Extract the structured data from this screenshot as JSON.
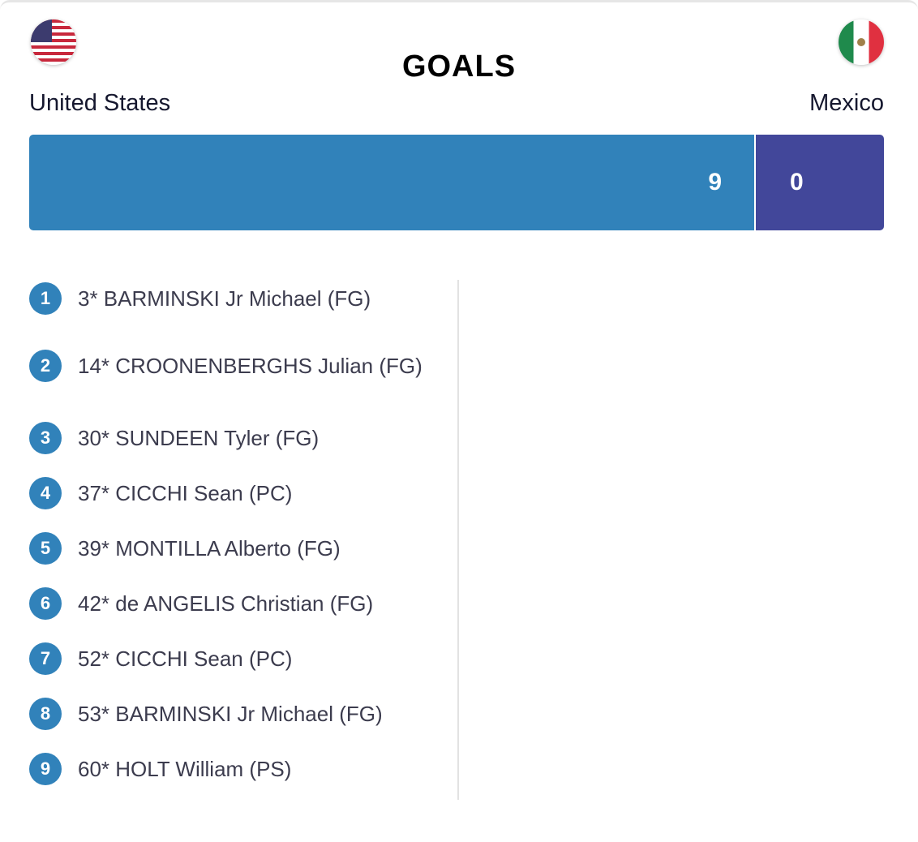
{
  "title": "GOALS",
  "home": {
    "name": "United States",
    "score": "9",
    "flag_icon": "us-flag",
    "color": "#3182ba"
  },
  "away": {
    "name": "Mexico",
    "score": "0",
    "flag_icon": "mexico-flag",
    "color": "#42479a"
  },
  "goals": [
    {
      "n": "1",
      "text": "3* BARMINSKI Jr Michael (FG)"
    },
    {
      "n": "2",
      "text": "14* CROONENBERGHS Julian (FG)"
    },
    {
      "n": "3",
      "text": "30* SUNDEEN Tyler (FG)"
    },
    {
      "n": "4",
      "text": "37* CICCHI Sean (PC)"
    },
    {
      "n": "5",
      "text": "39* MONTILLA Alberto (FG)"
    },
    {
      "n": "6",
      "text": "42* de ANGELIS Christian (FG)"
    },
    {
      "n": "7",
      "text": "52* CICCHI Sean (PC)"
    },
    {
      "n": "8",
      "text": "53* BARMINSKI Jr Michael (FG)"
    },
    {
      "n": "9",
      "text": "60* HOLT William (PS)"
    }
  ]
}
